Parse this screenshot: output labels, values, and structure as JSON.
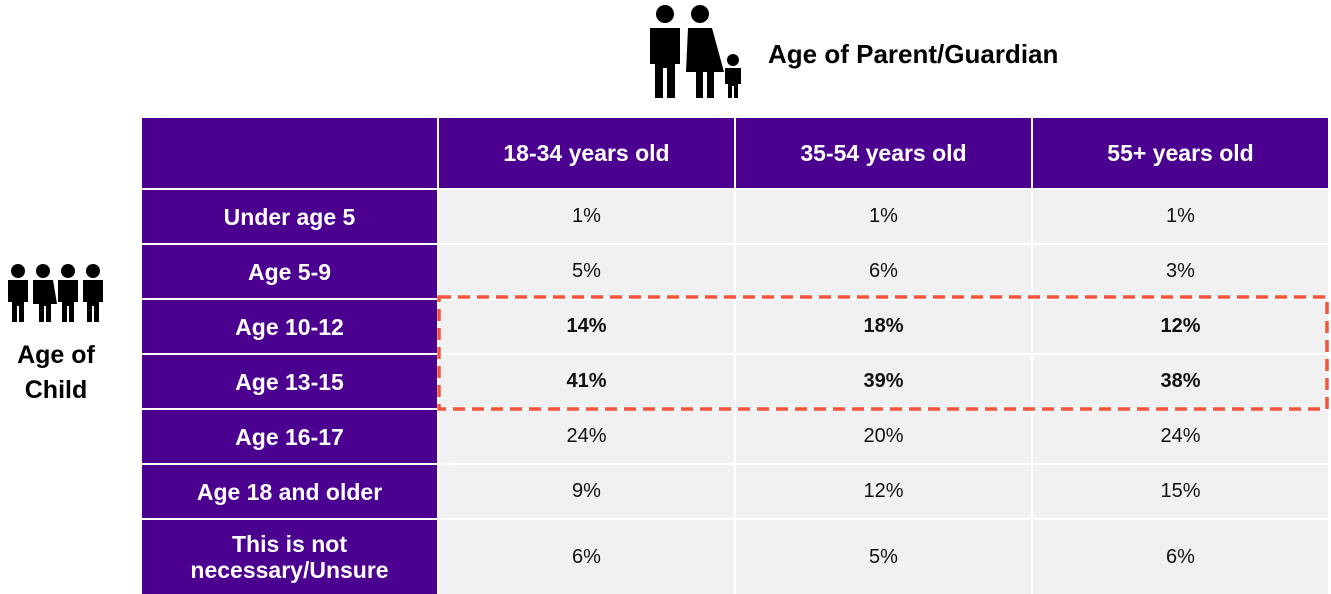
{
  "header": {
    "title": "Age of Parent/Guardian"
  },
  "side_label": "Age of Child",
  "table": {
    "columns": [
      "18-34 years old",
      "35-54 years old",
      "55+ years old"
    ],
    "rows": [
      {
        "label": "Under age 5",
        "cells": [
          "1%",
          "1%",
          "1%"
        ]
      },
      {
        "label": "Age 5-9",
        "cells": [
          "5%",
          "6%",
          "3%"
        ]
      },
      {
        "label": "Age 10-12",
        "cells": [
          "14%",
          "18%",
          "12%"
        ]
      },
      {
        "label": "Age 13-15",
        "cells": [
          "41%",
          "39%",
          "38%"
        ]
      },
      {
        "label": "Age 16-17",
        "cells": [
          "24%",
          "20%",
          "24%"
        ]
      },
      {
        "label": "Age 18 and older",
        "cells": [
          "9%",
          "12%",
          "15%"
        ]
      },
      {
        "label": "This is not necessary/Unsure",
        "cells": [
          "6%",
          "5%",
          "6%"
        ]
      }
    ],
    "highlighted_rows": [
      2,
      3
    ]
  }
}
